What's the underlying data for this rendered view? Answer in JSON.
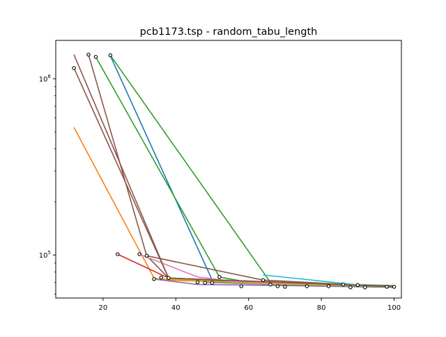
{
  "chart_data": {
    "type": "line",
    "title": "pcb1173.tsp - random_tabu_length",
    "xlabel": "",
    "ylabel": "",
    "x_scale": "linear",
    "y_scale": "log",
    "xlim": [
      7,
      102
    ],
    "ylim": [
      57000,
      1650000
    ],
    "x_ticks": [
      20,
      40,
      60,
      80,
      100
    ],
    "x_tick_labels": [
      "20",
      "40",
      "60",
      "80",
      "100"
    ],
    "y_ticks": [
      100000,
      1000000
    ],
    "y_tick_labels": [
      "10^5",
      "10^6"
    ],
    "grid": false,
    "legend": "none",
    "series": [
      {
        "color": "#1f77b4",
        "points": [
          [
            22,
            1350000
          ],
          [
            50,
            72000
          ],
          [
            90,
            67000
          ],
          [
            100,
            66000
          ]
        ]
      },
      {
        "color": "#ff7f0e",
        "points": [
          [
            12,
            530000
          ],
          [
            34,
            74000
          ],
          [
            37,
            72000
          ],
          [
            100,
            66000
          ]
        ]
      },
      {
        "color": "#2ca02c",
        "points": [
          [
            18,
            1330000
          ],
          [
            52,
            75000
          ],
          [
            60,
            70000
          ],
          [
            100,
            66000
          ]
        ]
      },
      {
        "color": "#2ca02c",
        "points": [
          [
            22,
            1360000
          ],
          [
            66,
            70000
          ],
          [
            100,
            67000
          ]
        ]
      },
      {
        "color": "#d62728",
        "points": [
          [
            24,
            101000
          ],
          [
            38,
            74000
          ],
          [
            86,
            68000
          ],
          [
            100,
            66000
          ]
        ]
      },
      {
        "color": "#9467bd",
        "points": [
          [
            34,
            73000
          ],
          [
            46,
            68000
          ],
          [
            70,
            67000
          ],
          [
            100,
            65500
          ]
        ]
      },
      {
        "color": "#8c564b",
        "points": [
          [
            12,
            1370000
          ],
          [
            38,
            74000
          ],
          [
            52,
            71000
          ],
          [
            100,
            66000
          ]
        ]
      },
      {
        "color": "#8c564b",
        "points": [
          [
            16,
            1370000
          ],
          [
            32,
            99000
          ],
          [
            38,
            74000
          ],
          [
            100,
            66000
          ]
        ]
      },
      {
        "color": "#8c564b",
        "points": [
          [
            32,
            99000
          ],
          [
            64,
            72000
          ],
          [
            100,
            66000
          ]
        ]
      },
      {
        "color": "#e377c2",
        "points": [
          [
            30,
            101000
          ],
          [
            46,
            75000
          ],
          [
            58,
            70000
          ],
          [
            100,
            66000
          ]
        ]
      },
      {
        "color": "#7f7f7f",
        "points": [
          [
            48,
            70000
          ],
          [
            76,
            67000
          ],
          [
            100,
            66000
          ]
        ]
      },
      {
        "color": "#bcbd22",
        "points": [
          [
            34,
            73500
          ],
          [
            62,
            69000
          ],
          [
            100,
            66000
          ]
        ]
      },
      {
        "color": "#17becf",
        "points": [
          [
            64,
            77000
          ],
          [
            92,
            67000
          ],
          [
            100,
            66000
          ]
        ]
      },
      {
        "color": "#8c564b",
        "points": [
          [
            12,
            1150000
          ],
          [
            38,
            74000
          ],
          [
            100,
            66000
          ]
        ]
      }
    ],
    "markers": [
      [
        12,
        1150000
      ],
      [
        16,
        1370000
      ],
      [
        18,
        1330000
      ],
      [
        22,
        1360000
      ],
      [
        24,
        101000
      ],
      [
        30,
        101000
      ],
      [
        32,
        99000
      ],
      [
        34,
        73000
      ],
      [
        36,
        74500
      ],
      [
        38,
        74000
      ],
      [
        46,
        70000
      ],
      [
        48,
        69500
      ],
      [
        50,
        69500
      ],
      [
        52,
        75000
      ],
      [
        58,
        66500
      ],
      [
        64,
        72000
      ],
      [
        66,
        68000
      ],
      [
        68,
        66500
      ],
      [
        70,
        66000
      ],
      [
        76,
        66500
      ],
      [
        82,
        66500
      ],
      [
        86,
        68000
      ],
      [
        88,
        65500
      ],
      [
        90,
        67500
      ],
      [
        92,
        65500
      ],
      [
        98,
        66000
      ],
      [
        100,
        66000
      ]
    ]
  }
}
